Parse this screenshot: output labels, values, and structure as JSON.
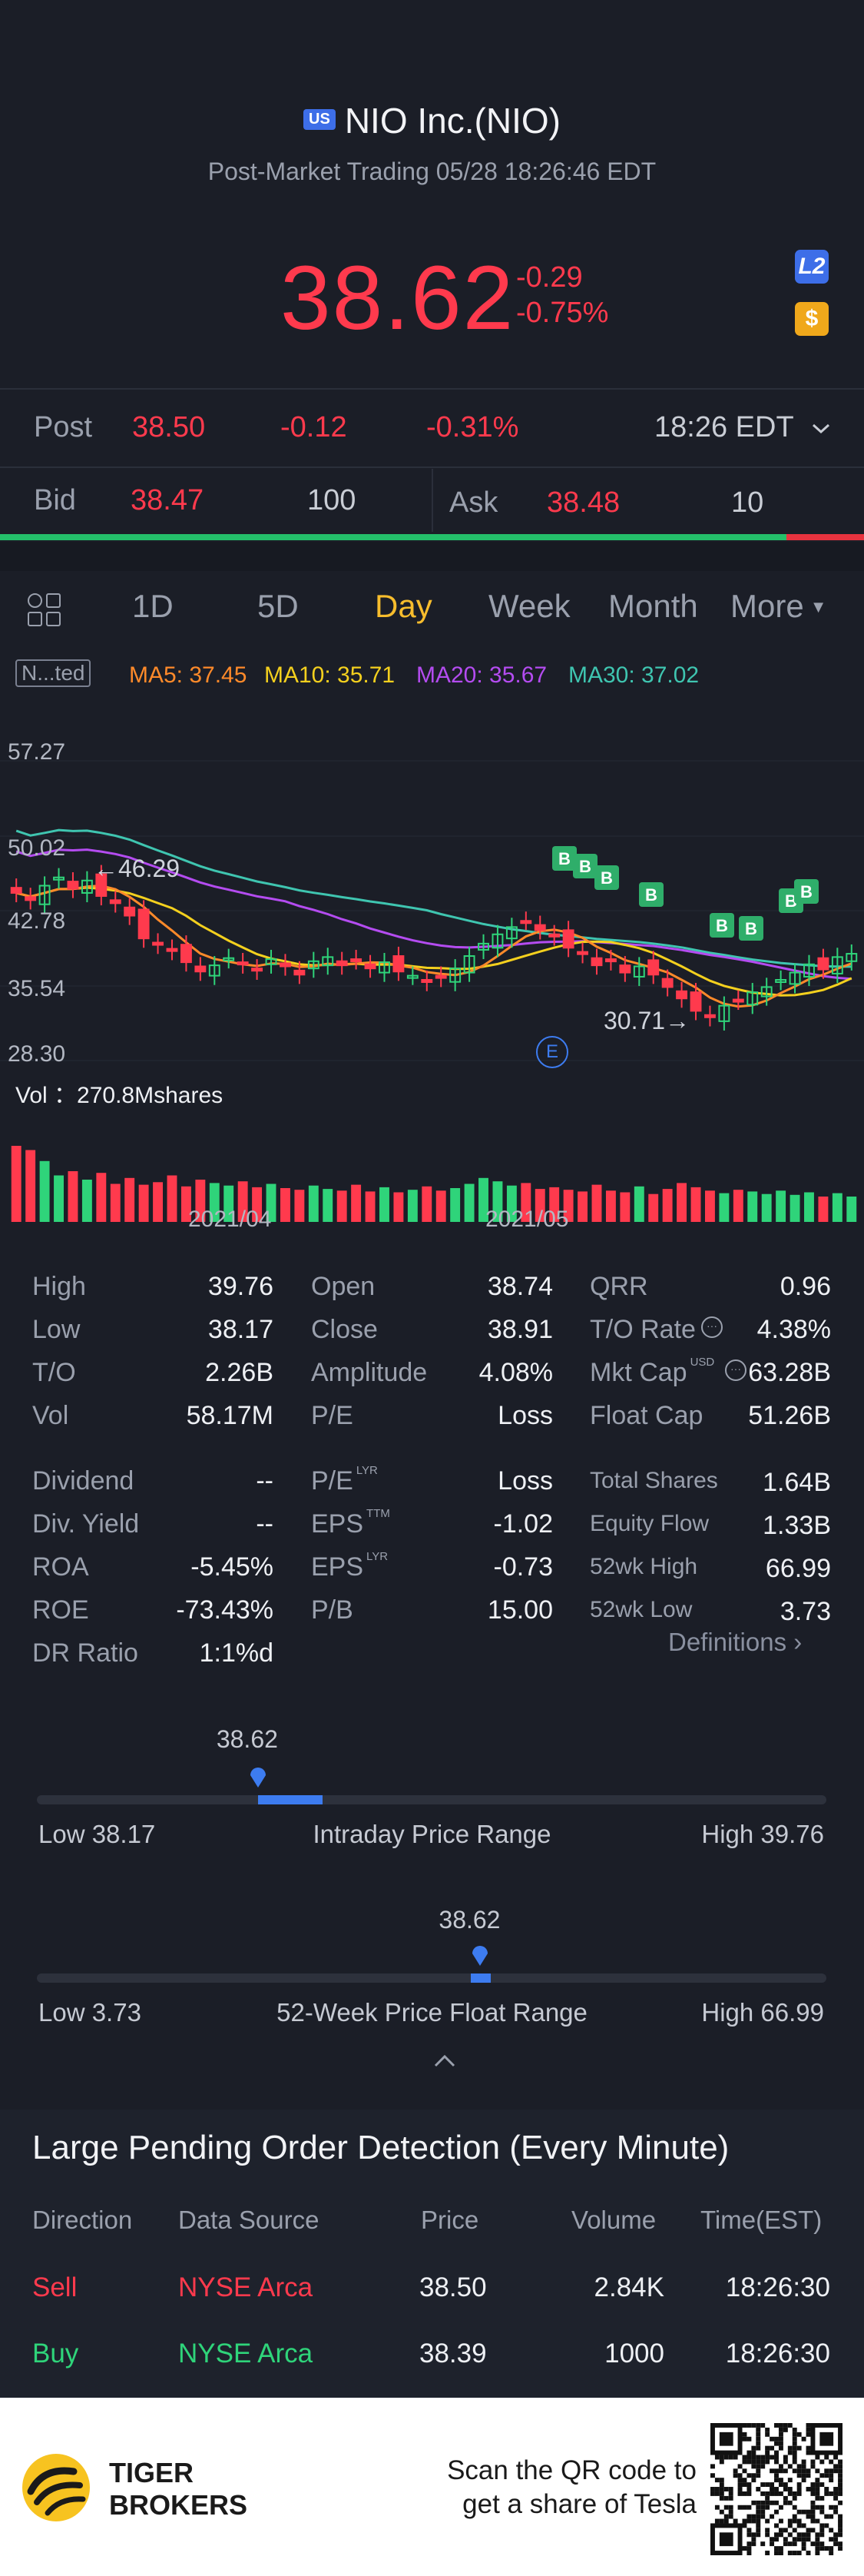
{
  "header": {
    "market_badge": "US",
    "title": "NIO Inc.(NIO)",
    "subtitle": "Post-Market Trading 05/28 18:26:46 EDT",
    "price": "38.62",
    "change": "-0.29",
    "change_pct": "-0.75%",
    "l2_badge": "L2",
    "dollar_badge": "$"
  },
  "post": {
    "label": "Post",
    "price": "38.50",
    "change": "-0.12",
    "change_pct": "-0.31%",
    "time": "18:26 EDT"
  },
  "bidask": {
    "bid_label": "Bid",
    "bid_price": "38.47",
    "bid_size": "100",
    "ask_label": "Ask",
    "ask_price": "38.48",
    "ask_size": "10",
    "bid_share": 0.91
  },
  "tabs": [
    "1D",
    "5D",
    "Day",
    "Week",
    "Month",
    "More"
  ],
  "active_tab": "Day",
  "indicator_box": "N...ted",
  "ma": {
    "ma5": "MA5: 37.45",
    "ma10": "MA10: 35.71",
    "ma20": "MA20: 35.67",
    "ma30": "MA30: 37.02",
    "colors": {
      "ma5": "#ff8a2a",
      "ma10": "#f4d01e",
      "ma20": "#b44cf0",
      "ma30": "#3fc5b0"
    }
  },
  "chart_data": {
    "type": "candlestick",
    "y_ticks": [
      "57.27",
      "50.02",
      "42.78",
      "35.54",
      "28.30"
    ],
    "x_ticks": [
      "2021/04",
      "2021/05"
    ],
    "annotations": {
      "high_marker": "←46.29",
      "low_marker": "30.71→",
      "event_marker": "E",
      "b_marker": "B"
    },
    "volume_label": "Vol ：270.8Mshares",
    "closes": [
      44.5,
      43.8,
      45.2,
      46.0,
      44.9,
      45.7,
      44.2,
      43.5,
      42.3,
      40.1,
      39.5,
      38.9,
      37.8,
      36.9,
      37.5,
      38.2,
      37.6,
      37.0,
      38.1,
      37.4,
      36.6,
      37.9,
      38.3,
      37.5,
      38.0,
      37.2,
      37.8,
      36.9,
      36.5,
      35.9,
      36.3,
      37.2,
      38.4,
      39.6,
      40.5,
      41.2,
      41.8,
      40.9,
      40.3,
      39.2,
      38.6,
      37.5,
      37.9,
      36.8,
      37.4,
      36.6,
      35.4,
      34.3,
      33.1,
      32.5,
      33.6,
      34.1,
      34.9,
      35.4,
      36.1,
      36.8,
      37.6,
      37.1,
      38.3,
      38.62
    ],
    "volumes": [
      0.9,
      0.85,
      0.72,
      0.55,
      0.6,
      0.5,
      0.58,
      0.45,
      0.52,
      0.44,
      0.47,
      0.55,
      0.42,
      0.5,
      0.46,
      0.43,
      0.48,
      0.41,
      0.45,
      0.4,
      0.38,
      0.43,
      0.39,
      0.37,
      0.44,
      0.36,
      0.41,
      0.35,
      0.38,
      0.42,
      0.37,
      0.4,
      0.45,
      0.52,
      0.48,
      0.43,
      0.46,
      0.39,
      0.41,
      0.38,
      0.36,
      0.44,
      0.37,
      0.35,
      0.42,
      0.33,
      0.39,
      0.46,
      0.41,
      0.37,
      0.34,
      0.38,
      0.36,
      0.33,
      0.37,
      0.32,
      0.35,
      0.3,
      0.34,
      0.3
    ]
  },
  "stats": {
    "col1": [
      {
        "label": "High",
        "value": "39.76"
      },
      {
        "label": "Low",
        "value": "38.17"
      },
      {
        "label": "T/O",
        "value": "2.26B"
      },
      {
        "label": "Vol",
        "value": "58.17M"
      }
    ],
    "col2": [
      {
        "label": "Open",
        "value": "38.74"
      },
      {
        "label": "Close",
        "value": "38.91"
      },
      {
        "label": "Amplitude",
        "value": "4.08%"
      },
      {
        "label": "P/E",
        "value": "Loss"
      }
    ],
    "col3": [
      {
        "label": "QRR",
        "value": "0.96"
      },
      {
        "label": "T/O Rate",
        "value": "4.38%"
      },
      {
        "label": "Mkt Cap",
        "value": "63.28B",
        "sup": "USD"
      },
      {
        "label": "Float Cap",
        "value": "51.26B"
      }
    ],
    "col1b": [
      {
        "label": "Dividend",
        "value": "--"
      },
      {
        "label": "Div. Yield",
        "value": "--"
      },
      {
        "label": "ROA",
        "value": "-5.45%"
      },
      {
        "label": "ROE",
        "value": "-73.43%"
      },
      {
        "label": "DR Ratio",
        "value": "1:1%d"
      }
    ],
    "col2b": [
      {
        "label": "P/E",
        "sup": "LYR",
        "value": "Loss"
      },
      {
        "label": "EPS",
        "sup": "TTM",
        "value": "-1.02"
      },
      {
        "label": "EPS",
        "sup": "LYR",
        "value": "-0.73"
      },
      {
        "label": "P/B",
        "value": "15.00"
      }
    ],
    "col3b": [
      {
        "label": "Total Shares",
        "value": "1.64B"
      },
      {
        "label": "Equity Flow",
        "value": "1.33B"
      },
      {
        "label": "52wk High",
        "value": "66.99"
      },
      {
        "label": "52wk Low",
        "value": "3.73"
      }
    ],
    "definitions": "Definitions"
  },
  "intraday_range": {
    "current": "38.62",
    "low_label": "Low 38.17",
    "title": "Intraday Price Range",
    "high_label": "High 39.76",
    "position": 0.28
  },
  "week52_range": {
    "current": "38.62",
    "low_label": "Low 3.73",
    "title": "52-Week Price Float Range",
    "high_label": "High 66.99",
    "position": 0.55
  },
  "orders": {
    "title": "Large Pending Order Detection (Every Minute)",
    "headers": [
      "Direction",
      "Data Source",
      "Price",
      "Volume",
      "Time(EST)"
    ],
    "rows": [
      {
        "direction": "Sell",
        "source": "NYSE Arca",
        "price": "38.50",
        "volume": "2.84K",
        "time": "18:26:30"
      },
      {
        "direction": "Buy",
        "source": "NYSE Arca",
        "price": "38.39",
        "volume": "1000",
        "time": "18:26:30"
      }
    ]
  },
  "footer": {
    "brand_line1": "TIGER",
    "brand_line2": "BROKERS",
    "promo_line1": "Scan the QR code to",
    "promo_line2": "get a share of Tesla"
  }
}
